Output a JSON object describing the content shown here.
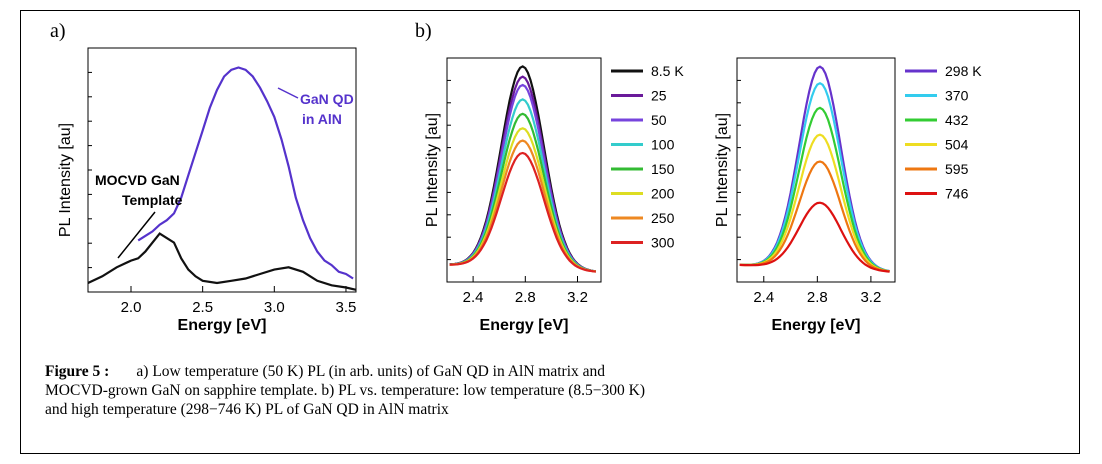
{
  "panel_labels": {
    "a": "a)",
    "b": "b)"
  },
  "caption": {
    "figure_label": "Figure",
    "figure_number": "5",
    "colon": ":",
    "line1": "a) Low temperature (50 K) PL (in arb. units) of GaN QD in AlN matrix and",
    "line2": "MOCVD-grown GaN on sapphire template. b) PL vs. temperature: low temperature (8.5−300 K)",
    "line3": "and high temperature (298−746 K) PL of GaN QD in AlN matrix"
  },
  "chart_data": [
    {
      "type": "line",
      "xlabel": "Energy [eV]",
      "ylabel": "PL Intensity [au]",
      "xlim": [
        1.7,
        3.57
      ],
      "ylim": [
        0,
        1.0
      ],
      "xticks": [
        "2.0",
        "2.5",
        "3.0",
        "3.5"
      ],
      "annotations": [
        "MOCVD GaN",
        "Template",
        "GaN QD",
        "in AlN"
      ],
      "series": [
        {
          "color": "#5533cc",
          "x": [
            2.05,
            2.1,
            2.15,
            2.2,
            2.25,
            2.3,
            2.35,
            2.4,
            2.45,
            2.5,
            2.55,
            2.6,
            2.65,
            2.7,
            2.75,
            2.8,
            2.85,
            2.9,
            2.95,
            3.0,
            3.05,
            3.1,
            3.15,
            3.2,
            3.25,
            3.3,
            3.35,
            3.4,
            3.45,
            3.5,
            3.55
          ],
          "y": [
            0.23,
            0.25,
            0.27,
            0.3,
            0.32,
            0.35,
            0.42,
            0.52,
            0.62,
            0.72,
            0.82,
            0.9,
            0.96,
            0.99,
            1.0,
            0.99,
            0.96,
            0.91,
            0.85,
            0.78,
            0.68,
            0.56,
            0.42,
            0.32,
            0.24,
            0.18,
            0.14,
            0.12,
            0.09,
            0.08,
            0.06
          ]
        },
        {
          "color": "#111111",
          "x": [
            1.7,
            1.8,
            1.9,
            2.0,
            2.05,
            2.1,
            2.15,
            2.2,
            2.25,
            2.3,
            2.35,
            2.4,
            2.45,
            2.5,
            2.6,
            2.7,
            2.8,
            2.9,
            3.0,
            3.1,
            3.2,
            3.3,
            3.4,
            3.5,
            3.57
          ],
          "y": [
            0.04,
            0.07,
            0.11,
            0.14,
            0.15,
            0.18,
            0.22,
            0.26,
            0.24,
            0.22,
            0.15,
            0.1,
            0.07,
            0.05,
            0.04,
            0.05,
            0.06,
            0.08,
            0.1,
            0.11,
            0.09,
            0.05,
            0.03,
            0.02,
            0.01
          ]
        }
      ]
    },
    {
      "type": "line",
      "xlabel": "Energy [eV]",
      "ylabel": "PL Intensity [au]",
      "xlim": [
        2.2,
        3.38
      ],
      "ylim": [
        0,
        1.0
      ],
      "xticks": [
        "2.4",
        "2.8",
        "3.2"
      ],
      "legend": "right",
      "series": [
        {
          "name": "8.5 K",
          "color": "#111111",
          "peak": 0.98
        },
        {
          "name": "25",
          "color": "#6a1a9a",
          "peak": 0.93
        },
        {
          "name": "50",
          "color": "#7744dd",
          "peak": 0.89
        },
        {
          "name": "100",
          "color": "#33cccc",
          "peak": 0.82
        },
        {
          "name": "150",
          "color": "#33bb33",
          "peak": 0.75
        },
        {
          "name": "200",
          "color": "#dddd22",
          "peak": 0.68
        },
        {
          "name": "250",
          "color": "#ee8822",
          "peak": 0.62
        },
        {
          "name": "300",
          "color": "#dd2222",
          "peak": 0.56
        }
      ],
      "peak_energy": 2.78,
      "width": 0.23
    },
    {
      "type": "line",
      "xlabel": "Energy [eV]",
      "ylabel": "PL Intensity [au]",
      "xlim": [
        2.2,
        3.38
      ],
      "ylim": [
        0,
        1.0
      ],
      "xticks": [
        "2.4",
        "2.8",
        "3.2"
      ],
      "legend": "right",
      "series": [
        {
          "name": "298 K",
          "color": "#6633cc",
          "peak": 0.98
        },
        {
          "name": "370",
          "color": "#33ccee",
          "peak": 0.9
        },
        {
          "name": "432",
          "color": "#33cc33",
          "peak": 0.78
        },
        {
          "name": "504",
          "color": "#eedd22",
          "peak": 0.65
        },
        {
          "name": "595",
          "color": "#ee7711",
          "peak": 0.52
        },
        {
          "name": "746",
          "color": "#dd1111",
          "peak": 0.32
        }
      ],
      "peak_energy": 2.82,
      "width": 0.22
    }
  ]
}
